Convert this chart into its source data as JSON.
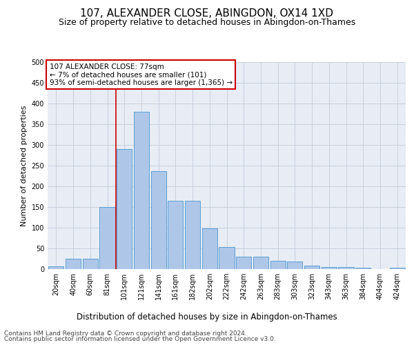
{
  "title1": "107, ALEXANDER CLOSE, ABINGDON, OX14 1XD",
  "title2": "Size of property relative to detached houses in Abingdon-on-Thames",
  "xlabel": "Distribution of detached houses by size in Abingdon-on-Thames",
  "ylabel": "Number of detached properties",
  "footer1": "Contains HM Land Registry data © Crown copyright and database right 2024.",
  "footer2": "Contains public sector information licensed under the Open Government Licence v3.0.",
  "bar_labels": [
    "20sqm",
    "40sqm",
    "60sqm",
    "81sqm",
    "101sqm",
    "121sqm",
    "141sqm",
    "161sqm",
    "182sqm",
    "202sqm",
    "222sqm",
    "242sqm",
    "263sqm",
    "283sqm",
    "303sqm",
    "323sqm",
    "343sqm",
    "363sqm",
    "384sqm",
    "404sqm",
    "424sqm"
  ],
  "bar_values": [
    6,
    25,
    25,
    150,
    290,
    380,
    237,
    165,
    165,
    99,
    53,
    30,
    30,
    20,
    18,
    9,
    5,
    5,
    4,
    0,
    4
  ],
  "bar_color": "#aec7e8",
  "bar_edge_color": "#5a9fd4",
  "annotation_text1": "107 ALEXANDER CLOSE: 77sqm",
  "annotation_text2": "← 7% of detached houses are smaller (101)",
  "annotation_text3": "93% of semi-detached houses are larger (1,365) →",
  "annotation_box_color": "#ffffff",
  "annotation_box_edge_color": "#cc0000",
  "red_line_color": "#cc0000",
  "red_line_bar_index": 3.5,
  "ylim": [
    0,
    500
  ],
  "yticks": [
    0,
    50,
    100,
    150,
    200,
    250,
    300,
    350,
    400,
    450,
    500
  ],
  "grid_color": "#c8d0de",
  "bg_color": "#e8edf5",
  "title1_fontsize": 11,
  "title2_fontsize": 9,
  "xlabel_fontsize": 8.5,
  "ylabel_fontsize": 8,
  "tick_fontsize": 7,
  "footer_fontsize": 6.5,
  "annot_fontsize": 7.5
}
